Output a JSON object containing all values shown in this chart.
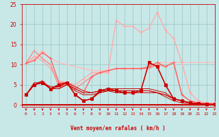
{
  "bg_color": "#c8e8e8",
  "grid_color": "#a0c8c8",
  "tick_color": "#cc0000",
  "xlabel": "Vent moyen/en rafales ( km/h )",
  "ylim": [
    -0.5,
    25
  ],
  "xlim": [
    -0.5,
    23
  ],
  "yticks": [
    0,
    5,
    10,
    15,
    20,
    25
  ],
  "xticks": [
    0,
    1,
    2,
    3,
    4,
    5,
    6,
    7,
    8,
    9,
    10,
    11,
    12,
    13,
    14,
    15,
    16,
    17,
    18,
    19,
    20,
    21,
    22,
    23
  ],
  "lines": [
    {
      "x": [
        0,
        1,
        2,
        3,
        4,
        5,
        6,
        7,
        8,
        9,
        10,
        11,
        12,
        13,
        14,
        15,
        16,
        17,
        18,
        19,
        20,
        21,
        22,
        23
      ],
      "y": [
        10.3,
        11.5,
        13.5,
        11.5,
        10.5,
        10.0,
        9.5,
        9.0,
        8.5,
        8.5,
        8.5,
        9.0,
        9.0,
        9.0,
        9.0,
        9.0,
        10.5,
        10.5,
        10.5,
        10.5,
        10.5,
        10.5,
        10.5,
        10.5
      ],
      "color": "#ffbbbb",
      "lw": 1.0,
      "marker": null,
      "ms": 0,
      "zorder": 2
    },
    {
      "x": [
        0,
        1,
        2,
        3,
        4,
        5,
        6,
        7,
        8,
        9,
        10,
        11,
        12,
        13,
        14,
        15,
        16,
        17,
        18,
        19,
        20,
        21,
        22,
        23
      ],
      "y": [
        10.3,
        12.0,
        11.0,
        9.0,
        6.0,
        5.5,
        5.0,
        6.5,
        8.0,
        8.0,
        8.0,
        21.0,
        19.5,
        19.5,
        18.0,
        19.0,
        23.0,
        18.5,
        16.5,
        10.5,
        3.0,
        1.0,
        0.5,
        0.5
      ],
      "color": "#ffaaaa",
      "lw": 1.0,
      "marker": "+",
      "ms": 3.5,
      "zorder": 3
    },
    {
      "x": [
        0,
        1,
        2,
        3,
        4,
        5,
        6,
        7,
        8,
        9,
        10,
        11,
        12,
        13,
        14,
        15,
        16,
        17,
        18,
        19,
        20,
        21,
        22,
        23
      ],
      "y": [
        10.3,
        13.5,
        11.5,
        10.0,
        4.5,
        5.0,
        4.0,
        5.5,
        7.0,
        8.0,
        8.5,
        9.0,
        9.0,
        9.0,
        9.0,
        9.0,
        10.0,
        9.5,
        10.5,
        2.5,
        1.0,
        0.5,
        0.3,
        0.2
      ],
      "color": "#ff8888",
      "lw": 1.0,
      "marker": null,
      "ms": 0,
      "zorder": 3
    },
    {
      "x": [
        0,
        1,
        2,
        3,
        4,
        5,
        6,
        7,
        8,
        9,
        10,
        11,
        12,
        13,
        14,
        15,
        16,
        17,
        18,
        19,
        20,
        21,
        22,
        23
      ],
      "y": [
        10.3,
        11.0,
        13.0,
        11.5,
        5.5,
        5.5,
        4.0,
        3.0,
        7.0,
        8.0,
        8.5,
        9.0,
        9.0,
        9.0,
        9.0,
        9.5,
        10.5,
        9.5,
        10.5,
        2.5,
        1.0,
        0.5,
        0.3,
        0.2
      ],
      "color": "#ff6666",
      "lw": 1.0,
      "marker": "+",
      "ms": 3.5,
      "zorder": 3
    },
    {
      "x": [
        0,
        1,
        2,
        3,
        4,
        5,
        6,
        7,
        8,
        9,
        10,
        11,
        12,
        13,
        14,
        15,
        16,
        17,
        18,
        19,
        20,
        21,
        22,
        23
      ],
      "y": [
        2.5,
        5.0,
        5.5,
        4.5,
        4.5,
        5.5,
        4.5,
        3.5,
        3.0,
        3.5,
        3.5,
        3.5,
        3.5,
        3.5,
        3.5,
        3.5,
        3.0,
        2.5,
        1.5,
        1.0,
        0.5,
        0.3,
        0.2,
        0.1
      ],
      "color": "#cc0000",
      "lw": 0.7,
      "marker": null,
      "ms": 0,
      "zorder": 4
    },
    {
      "x": [
        0,
        1,
        2,
        3,
        4,
        5,
        6,
        7,
        8,
        9,
        10,
        11,
        12,
        13,
        14,
        15,
        16,
        17,
        18,
        19,
        20,
        21,
        22,
        23
      ],
      "y": [
        2.5,
        5.0,
        5.5,
        4.0,
        4.0,
        5.0,
        3.5,
        2.5,
        2.5,
        3.0,
        3.5,
        3.5,
        3.5,
        3.5,
        3.5,
        3.5,
        3.0,
        2.5,
        1.5,
        1.0,
        0.5,
        0.3,
        0.2,
        0.1
      ],
      "color": "#cc0000",
      "lw": 0.7,
      "marker": null,
      "ms": 0,
      "zorder": 4
    },
    {
      "x": [
        0,
        1,
        2,
        3,
        4,
        5,
        6,
        7,
        8,
        9,
        10,
        11,
        12,
        13,
        14,
        15,
        16,
        17,
        18,
        19,
        20,
        21,
        22,
        23
      ],
      "y": [
        2.5,
        5.0,
        5.5,
        4.0,
        5.0,
        5.5,
        2.5,
        1.0,
        1.5,
        3.5,
        4.0,
        3.5,
        3.0,
        3.0,
        3.5,
        10.5,
        9.5,
        5.0,
        1.5,
        1.0,
        0.5,
        0.3,
        0.2,
        0.1
      ],
      "color": "#cc0000",
      "lw": 1.2,
      "marker": "s",
      "ms": 2.5,
      "zorder": 6
    },
    {
      "x": [
        0,
        1,
        2,
        3,
        4,
        5,
        6,
        7,
        8,
        9,
        10,
        11,
        12,
        13,
        14,
        15,
        16,
        17,
        18,
        19,
        20,
        21,
        22,
        23
      ],
      "y": [
        2.5,
        5.0,
        6.0,
        4.0,
        4.0,
        5.0,
        4.0,
        3.0,
        3.0,
        3.5,
        4.0,
        4.0,
        4.0,
        4.0,
        4.0,
        4.0,
        3.5,
        3.0,
        1.5,
        1.0,
        0.5,
        0.2,
        0.1,
        0.05
      ],
      "color": "#cc0000",
      "lw": 0.7,
      "marker": null,
      "ms": 0,
      "zorder": 4
    },
    {
      "x": [
        0,
        1,
        2,
        3,
        4,
        5,
        6,
        7,
        8,
        9,
        10,
        11,
        12,
        13,
        14,
        15,
        16,
        17,
        18,
        19,
        20,
        21,
        22,
        23
      ],
      "y": [
        2.5,
        5.5,
        5.5,
        4.0,
        4.5,
        5.5,
        2.5,
        1.0,
        1.5,
        3.0,
        3.5,
        3.0,
        3.0,
        3.0,
        3.0,
        3.0,
        3.0,
        2.0,
        1.0,
        0.5,
        0.3,
        0.1,
        0.1,
        0.05
      ],
      "color": "#cc0000",
      "lw": 0.7,
      "marker": null,
      "ms": 0,
      "zorder": 4
    }
  ]
}
